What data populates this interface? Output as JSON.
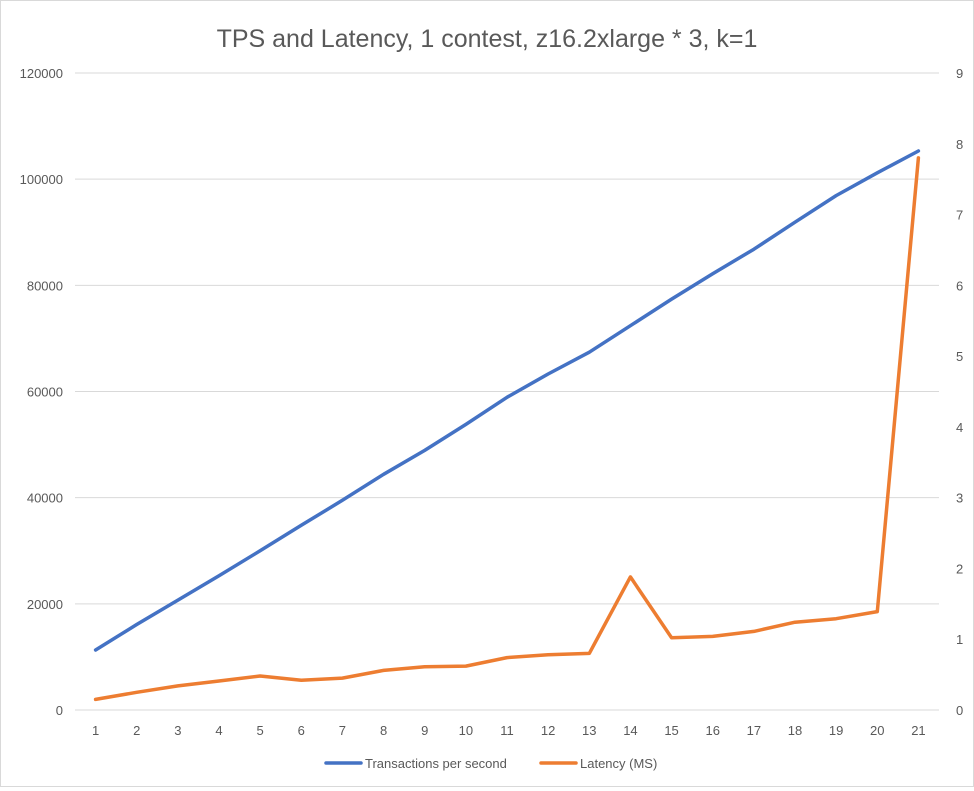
{
  "chart_data": {
    "type": "line",
    "title": "TPS and Latency, 1 contest, z16.2xlarge * 3, k=1",
    "categories": [
      "1",
      "2",
      "3",
      "4",
      "5",
      "6",
      "7",
      "8",
      "9",
      "10",
      "11",
      "12",
      "13",
      "14",
      "15",
      "16",
      "17",
      "18",
      "19",
      "20",
      "21"
    ],
    "y_left": {
      "min": 0,
      "max": 120000,
      "ticks": [
        "0",
        "20000",
        "40000",
        "60000",
        "80000",
        "100000",
        "120000"
      ]
    },
    "y_right": {
      "min": 0,
      "max": 9,
      "ticks": [
        "0",
        "1",
        "2",
        "3",
        "4",
        "5",
        "6",
        "7",
        "8",
        "9"
      ]
    },
    "grid": true,
    "legend_position": "bottom",
    "series": [
      {
        "name": "Transactions per second",
        "axis": "left",
        "color": "#4472C4",
        "values": [
          11300,
          16100,
          20700,
          25300,
          30000,
          34800,
          39500,
          44400,
          48900,
          53800,
          58900,
          63300,
          67400,
          72400,
          77400,
          82200,
          86800,
          91900,
          96900,
          101200,
          105300
        ]
      },
      {
        "name": "Latency (MS)",
        "axis": "right",
        "color": "#ED7D31",
        "values": [
          0.15,
          0.25,
          0.34,
          0.41,
          0.48,
          0.42,
          0.45,
          0.56,
          0.61,
          0.62,
          0.74,
          0.78,
          0.8,
          1.88,
          1.02,
          1.04,
          1.11,
          1.24,
          1.29,
          1.39,
          7.8
        ]
      }
    ]
  }
}
